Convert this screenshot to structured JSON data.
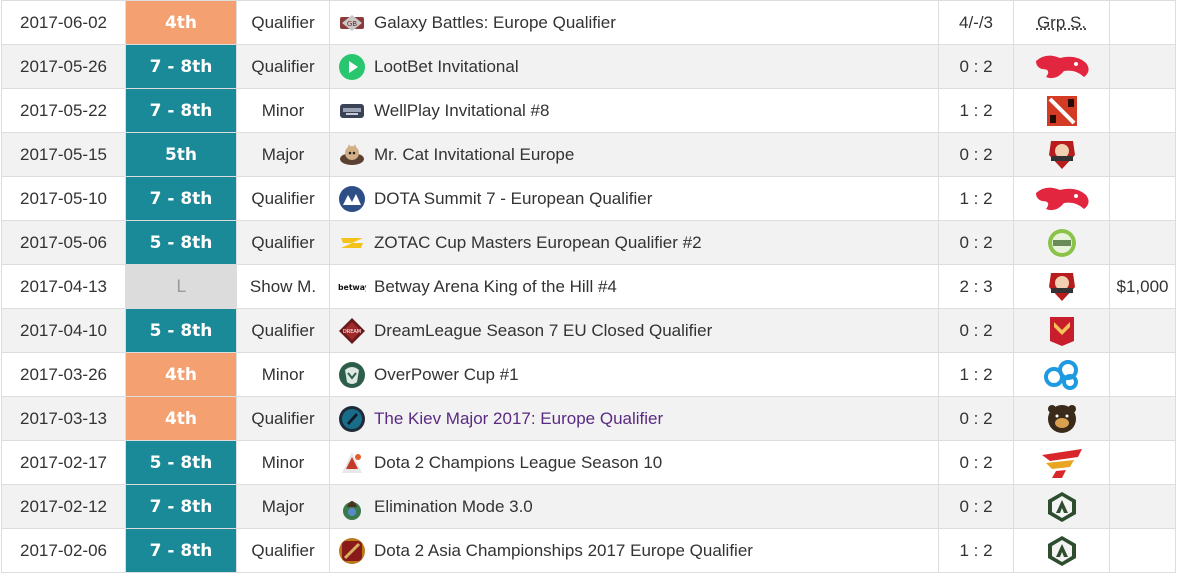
{
  "rows": [
    {
      "date": "2017-06-02",
      "place": "4th",
      "place_style": "orange",
      "tier": "Qualifier",
      "tournament_icon": "galaxy-battles-icon",
      "tournament": "Galaxy Battles: Europe Qualifier",
      "score": "4/-/3",
      "opponent_text": "Grp S.",
      "opponent_icon": "",
      "prize": ""
    },
    {
      "date": "2017-05-26",
      "place": "7 - 8th",
      "place_style": "teal",
      "tier": "Qualifier",
      "tournament_icon": "lootbet-icon",
      "tournament": "LootBet Invitational",
      "score": "0 : 2",
      "opponent_text": "",
      "opponent_icon": "mousesports-logo",
      "prize": ""
    },
    {
      "date": "2017-05-22",
      "place": "7 - 8th",
      "place_style": "teal",
      "tier": "Minor",
      "tournament_icon": "wellplay-icon",
      "tournament": "WellPlay Invitational #8",
      "score": "1 : 2",
      "opponent_text": "",
      "opponent_icon": "dota2-logo",
      "prize": ""
    },
    {
      "date": "2017-05-15",
      "place": "5th",
      "place_style": "teal",
      "tier": "Major",
      "tournament_icon": "mr-cat-icon",
      "tournament": "Mr. Cat Invitational Europe",
      "score": "0 : 2",
      "opponent_text": "",
      "opponent_icon": "tempest-logo",
      "prize": ""
    },
    {
      "date": "2017-05-10",
      "place": "7 - 8th",
      "place_style": "teal",
      "tier": "Qualifier",
      "tournament_icon": "dota-summit-icon",
      "tournament": "DOTA Summit 7 - European Qualifier",
      "score": "1 : 2",
      "opponent_text": "",
      "opponent_icon": "mousesports-logo",
      "prize": ""
    },
    {
      "date": "2017-05-06",
      "place": "5 - 8th",
      "place_style": "teal",
      "tier": "Qualifier",
      "tournament_icon": "zotac-icon",
      "tournament": "ZOTAC Cup Masters European Qualifier #2",
      "score": "0 : 2",
      "opponent_text": "",
      "opponent_icon": "green-circle-logo",
      "prize": ""
    },
    {
      "date": "2017-04-13",
      "place": "L",
      "place_style": "lose",
      "tier": "Show M.",
      "tournament_icon": "betway-icon",
      "tournament": "Betway Arena King of the Hill #4",
      "score": "2 : 3",
      "opponent_text": "",
      "opponent_icon": "tempest-logo",
      "prize": "$1,000"
    },
    {
      "date": "2017-04-10",
      "place": "5 - 8th",
      "place_style": "teal",
      "tier": "Qualifier",
      "tournament_icon": "dreamleague-icon",
      "tournament": "DreamLeague Season 7 EU Closed Qualifier",
      "score": "0 : 2",
      "opponent_text": "",
      "opponent_icon": "red-chevron-logo",
      "prize": ""
    },
    {
      "date": "2017-03-26",
      "place": "4th",
      "place_style": "orange",
      "tier": "Minor",
      "tournament_icon": "overpower-icon",
      "tournament": "OverPower Cup #1",
      "score": "1 : 2",
      "opponent_text": "",
      "opponent_icon": "cloud9-logo",
      "prize": ""
    },
    {
      "date": "2017-03-13",
      "place": "4th",
      "place_style": "orange",
      "tier": "Qualifier",
      "tournament_icon": "kiev-major-icon",
      "tournament": "The Kiev Major 2017: Europe Qualifier",
      "tournament_visited": true,
      "score": "0 : 2",
      "opponent_text": "",
      "opponent_icon": "bear-logo",
      "prize": ""
    },
    {
      "date": "2017-02-17",
      "place": "5 - 8th",
      "place_style": "teal",
      "tier": "Minor",
      "tournament_icon": "dota2-champions-league-icon",
      "tournament": "Dota 2 Champions League Season 10",
      "score": "0 : 2",
      "opponent_text": "",
      "opponent_icon": "red-gold-logo",
      "prize": ""
    },
    {
      "date": "2017-02-12",
      "place": "7 - 8th",
      "place_style": "teal",
      "tier": "Major",
      "tournament_icon": "elimination-mode-icon",
      "tournament": "Elimination Mode 3.0",
      "score": "0 : 2",
      "opponent_text": "",
      "opponent_icon": "alliance-logo",
      "prize": ""
    },
    {
      "date": "2017-02-06",
      "place": "7 - 8th",
      "place_style": "teal",
      "tier": "Qualifier",
      "tournament_icon": "dota2-asia-championships-icon",
      "tournament": "Dota 2 Asia Championships 2017 Europe Qualifier",
      "score": "1 : 2",
      "opponent_text": "",
      "opponent_icon": "alliance-logo",
      "prize": ""
    }
  ],
  "colors": {
    "teal": "#1a8a99",
    "orange": "#f5a070",
    "lose": "#dcdcdc",
    "link": "#3c62a5",
    "visited_link": "#5a2a82"
  }
}
